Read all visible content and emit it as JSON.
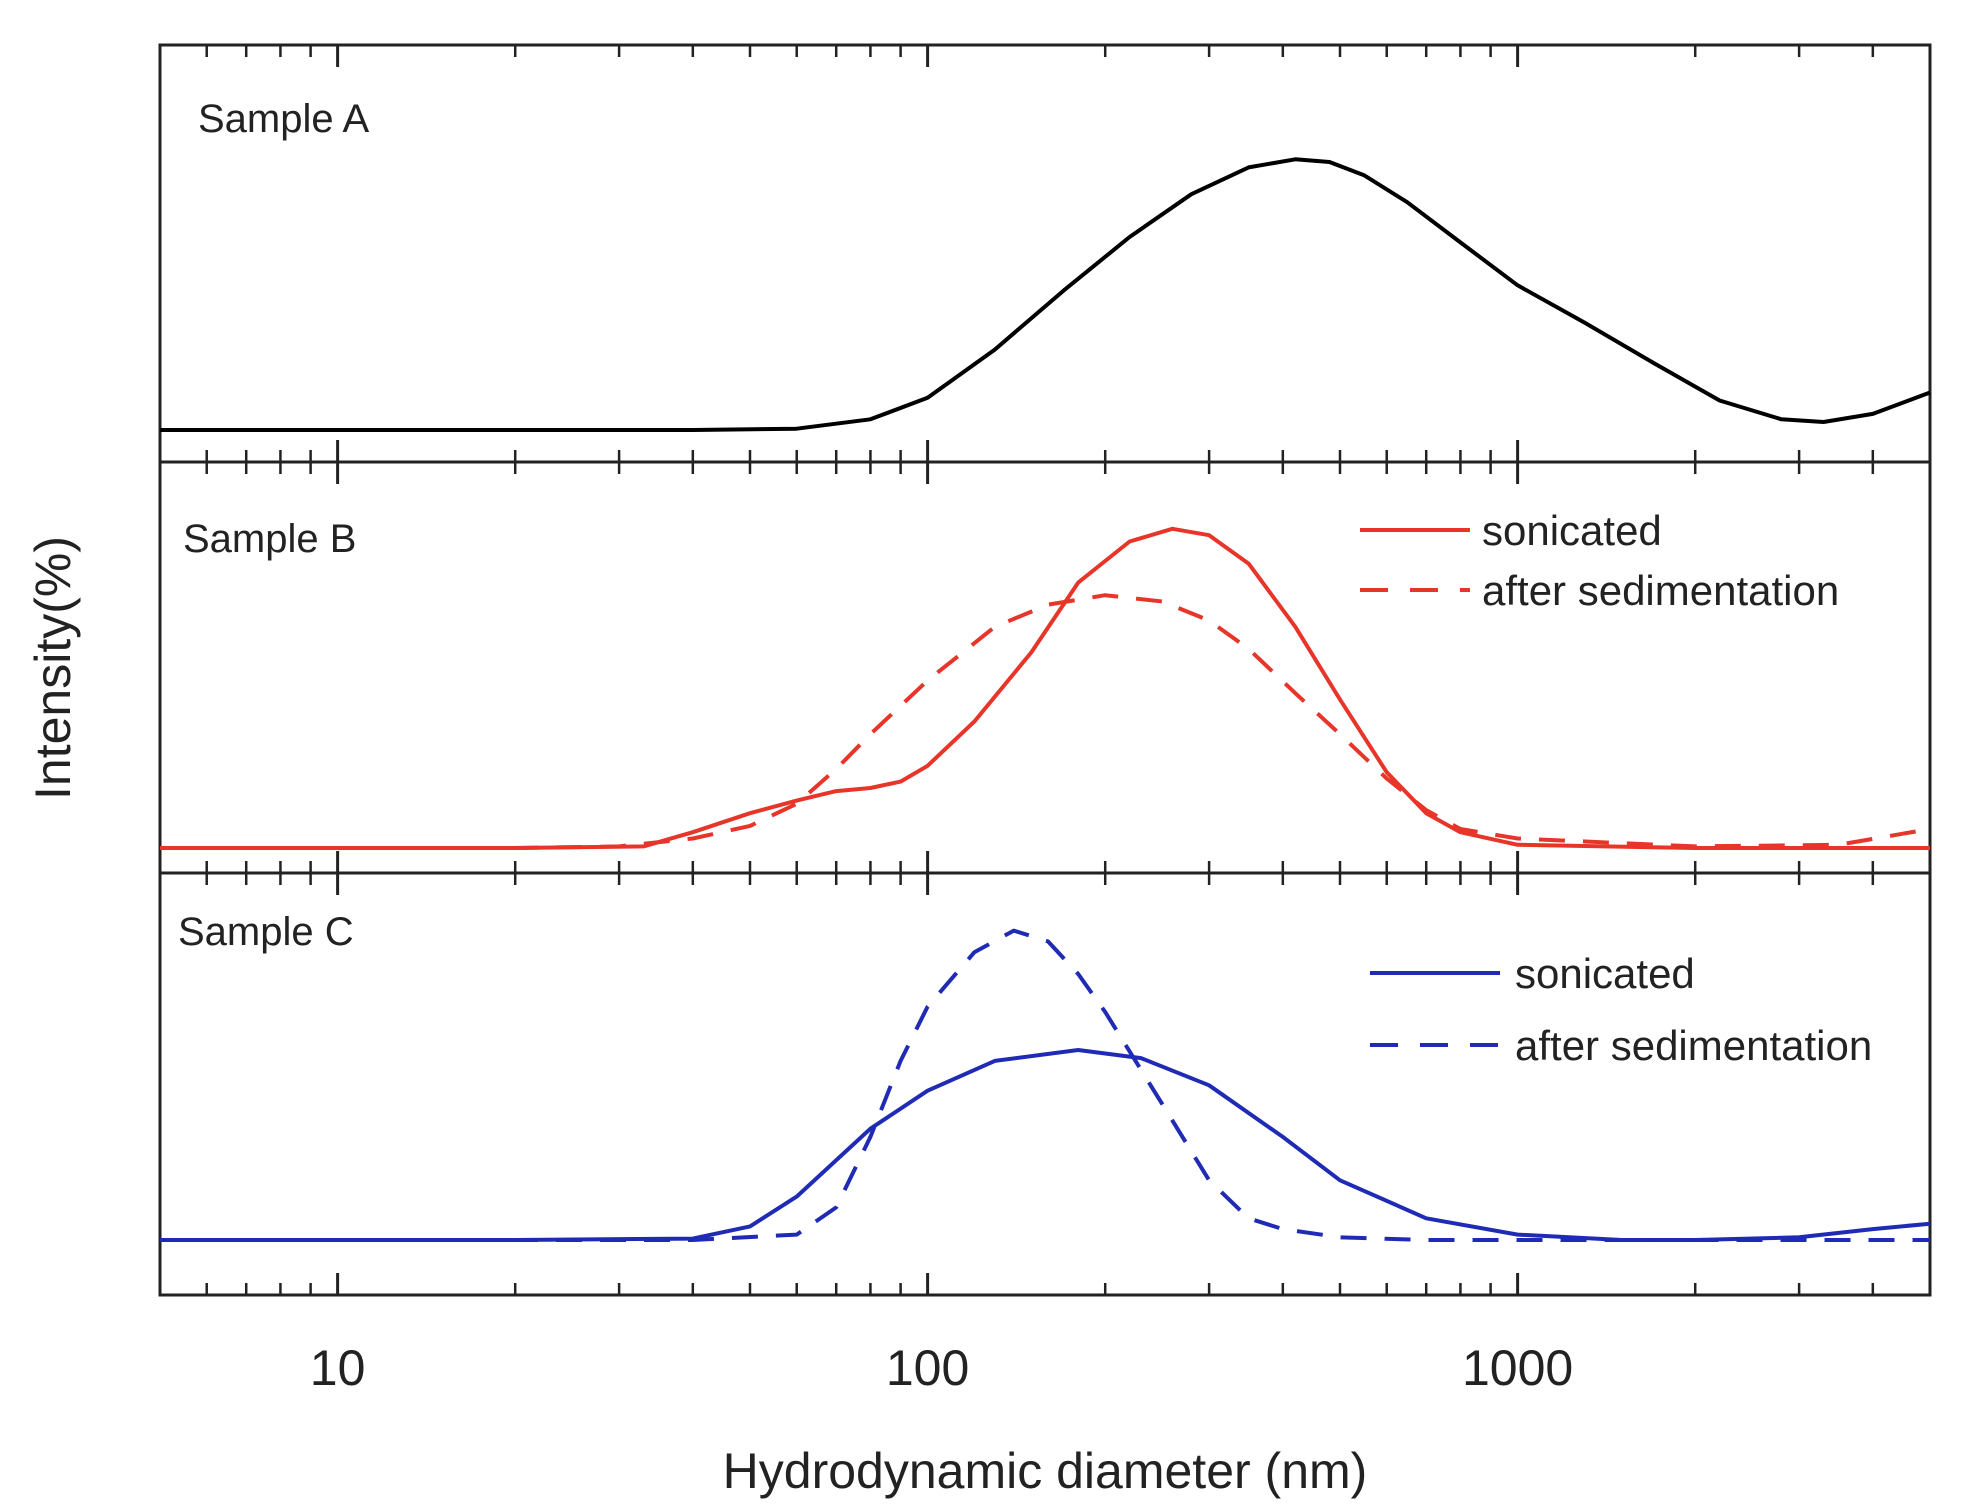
{
  "chart_data": {
    "type": "line",
    "xlabel": "Hydrodynamic diameter (nm)",
    "ylabel": "Intensity(%)",
    "x_scale": "log",
    "xlim": [
      5,
      5000
    ],
    "x_tick_labels": [
      "10",
      "100",
      "1000"
    ],
    "x_ticks": [
      10,
      100,
      1000
    ],
    "grid": false,
    "panels": [
      {
        "label": "Sample A",
        "ylim": [
          0,
          1.15
        ],
        "legend": [],
        "series": [
          {
            "style": "solid",
            "color": "#000000",
            "x": [
              5,
              20,
              40,
              60,
              80,
              100,
              130,
              170,
              220,
              280,
              350,
              420,
              480,
              550,
              650,
              800,
              1000,
              1300,
              1700,
              2200,
              2800,
              3300,
              4000,
              5000
            ],
            "y": [
              0.0,
              0.0,
              0.0,
              0.005,
              0.04,
              0.12,
              0.3,
              0.52,
              0.72,
              0.88,
              0.98,
              1.01,
              1.0,
              0.95,
              0.85,
              0.7,
              0.54,
              0.4,
              0.25,
              0.11,
              0.04,
              0.03,
              0.06,
              0.14
            ]
          }
        ]
      },
      {
        "label": "Sample B",
        "ylim": [
          0,
          1.15
        ],
        "legend": [
          {
            "label": "sonicated",
            "style": "solid",
            "color": "#e8352a"
          },
          {
            "label": "after sedimentation",
            "style": "dashed",
            "color": "#e8352a"
          }
        ],
        "series": [
          {
            "style": "solid",
            "color": "#e8352a",
            "x": [
              5,
              20,
              33,
              40,
              50,
              60,
              70,
              80,
              90,
              100,
              120,
              150,
              180,
              220,
              260,
              300,
              350,
              420,
              500,
              600,
              700,
              800,
              1000,
              2000,
              5000
            ],
            "y": [
              0.0,
              0.0,
              0.005,
              0.05,
              0.11,
              0.15,
              0.18,
              0.19,
              0.21,
              0.26,
              0.4,
              0.62,
              0.84,
              0.97,
              1.01,
              0.99,
              0.9,
              0.7,
              0.47,
              0.24,
              0.11,
              0.05,
              0.01,
              0.0,
              0.0
            ]
          },
          {
            "style": "dashed",
            "color": "#e8352a",
            "x": [
              5,
              20,
              30,
              40,
              50,
              60,
              70,
              80,
              100,
              130,
              160,
              200,
              250,
              300,
              350,
              420,
              500,
              600,
              700,
              800,
              1000,
              2000,
              3500,
              5000
            ],
            "y": [
              0.0,
              0.0,
              0.005,
              0.03,
              0.07,
              0.14,
              0.25,
              0.36,
              0.53,
              0.7,
              0.77,
              0.8,
              0.78,
              0.72,
              0.63,
              0.49,
              0.36,
              0.22,
              0.12,
              0.06,
              0.03,
              0.005,
              0.01,
              0.06
            ]
          }
        ]
      },
      {
        "label": "Sample C",
        "ylim": [
          0,
          1.3
        ],
        "legend": [
          {
            "label": "sonicated",
            "style": "solid",
            "color": "#1f2bb5"
          },
          {
            "label": "after sedimentation",
            "style": "dashed",
            "color": "#1f2bb5"
          }
        ],
        "series": [
          {
            "style": "solid",
            "color": "#1f2bb5",
            "x": [
              5,
              20,
              40,
              50,
              60,
              80,
              100,
              130,
              180,
              230,
              300,
              400,
              500,
              700,
              1000,
              1500,
              2000,
              3000,
              4000,
              5000
            ],
            "y": [
              0.0,
              0.0,
              0.005,
              0.05,
              0.16,
              0.41,
              0.55,
              0.66,
              0.7,
              0.67,
              0.57,
              0.38,
              0.22,
              0.08,
              0.02,
              0.0,
              0.0,
              0.01,
              0.04,
              0.06
            ]
          },
          {
            "style": "dashed",
            "color": "#1f2bb5",
            "x": [
              5,
              20,
              40,
              60,
              70,
              80,
              90,
              100,
              120,
              140,
              160,
              180,
              200,
              250,
              300,
              350,
              400,
              500,
              700,
              1000,
              2000,
              5000
            ],
            "y": [
              0.0,
              0.0,
              0.0,
              0.02,
              0.12,
              0.38,
              0.66,
              0.86,
              1.06,
              1.14,
              1.1,
              0.98,
              0.84,
              0.5,
              0.22,
              0.08,
              0.04,
              0.01,
              0.0,
              0.0,
              0.0,
              0.0
            ]
          }
        ]
      }
    ]
  }
}
